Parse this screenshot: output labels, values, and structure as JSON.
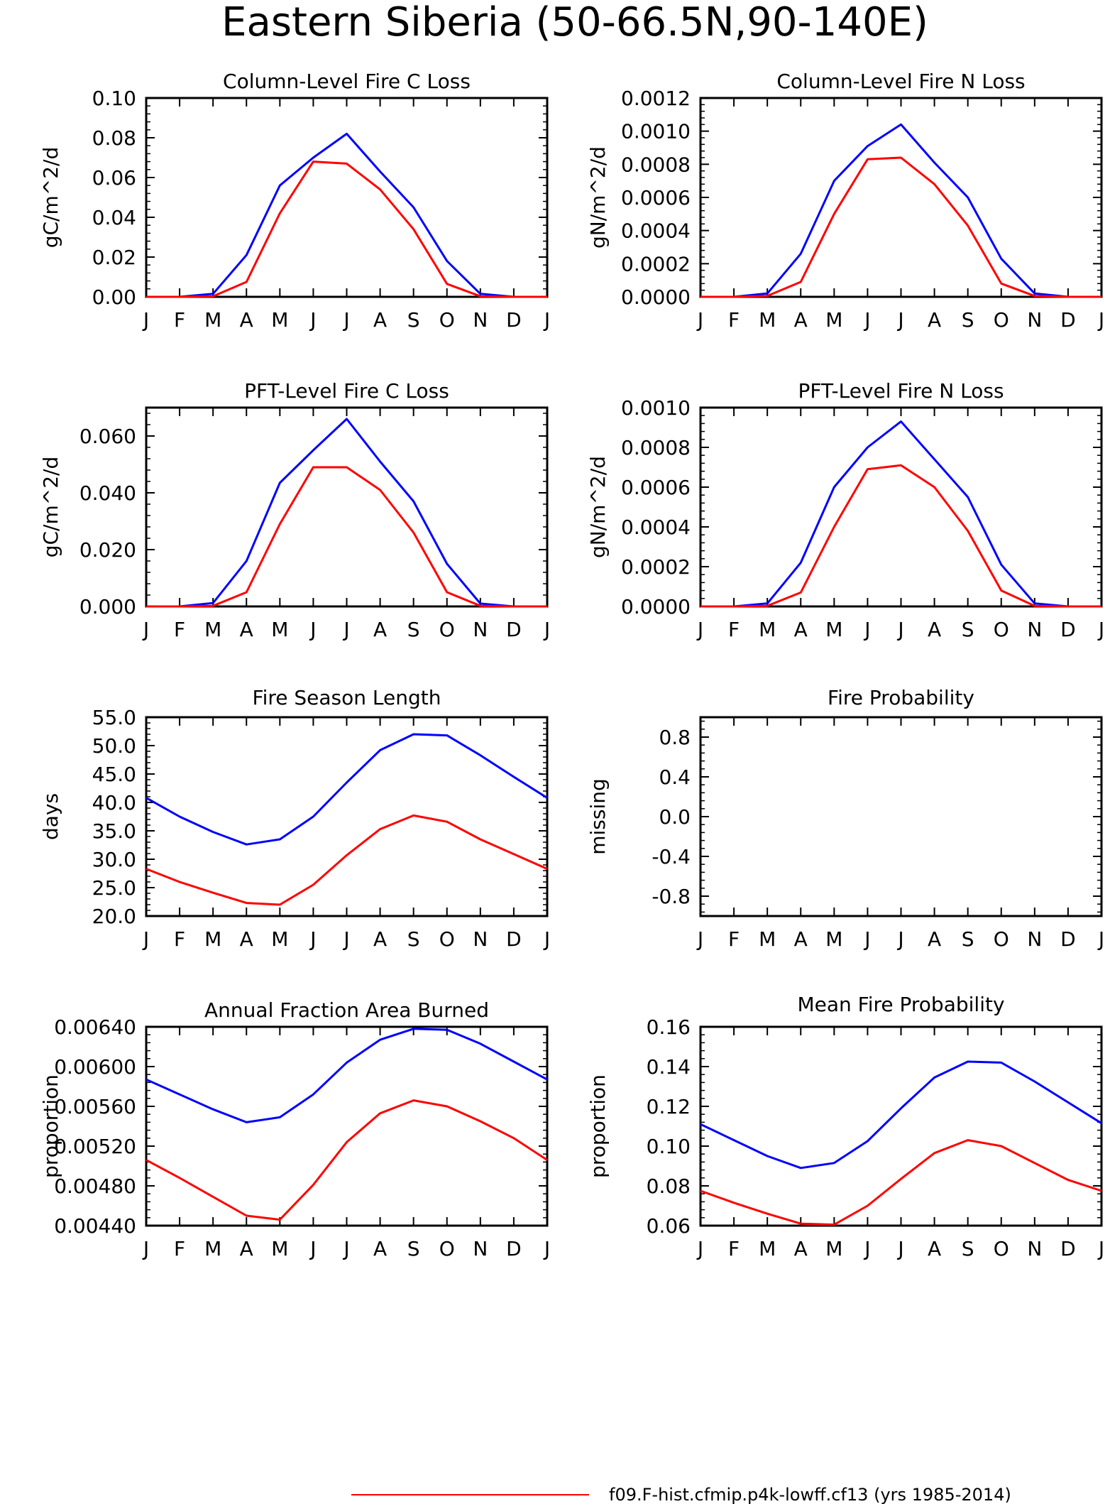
{
  "title": "Eastern Siberia (50-66.5N,90-140E)",
  "month_labels": [
    "J",
    "F",
    "M",
    "A",
    "M",
    "J",
    "J",
    "A",
    "S",
    "O",
    "N",
    "D",
    "J"
  ],
  "colors": {
    "case1": "#0000ff",
    "case2": "#ff0000"
  },
  "legend": {
    "case2_label": "f09.F-hist.cfmip.p4k-lowff.cf13 (yrs 1985-2014)"
  },
  "chart_data": [
    {
      "type": "line",
      "title": "Column-Level Fire C Loss",
      "ylabel": "gC/m^2/d",
      "ylim": [
        0,
        0.1
      ],
      "yticks": [
        "0.00",
        "0.02",
        "0.04",
        "0.06",
        "0.08",
        "0.10"
      ],
      "ytick_values": [
        0,
        0.02,
        0.04,
        0.06,
        0.08,
        0.1
      ],
      "x": [
        "J",
        "F",
        "M",
        "A",
        "M",
        "J",
        "J",
        "A",
        "S",
        "O",
        "N",
        "D",
        "J"
      ],
      "series": [
        {
          "color": "#0000ff",
          "values": [
            0.0,
            0.0,
            0.0015,
            0.021,
            0.056,
            0.07,
            0.082,
            0.063,
            0.045,
            0.018,
            0.0015,
            0.0,
            0.0
          ]
        },
        {
          "color": "#ff0000",
          "values": [
            0.0,
            0.0,
            0.0003,
            0.0075,
            0.042,
            0.068,
            0.067,
            0.054,
            0.034,
            0.0065,
            0.0003,
            0.0,
            0.0
          ]
        }
      ]
    },
    {
      "type": "line",
      "title": "Column-Level Fire N Loss",
      "ylabel": "gN/m^2/d",
      "ylim": [
        0,
        0.0012
      ],
      "yticks": [
        "0.0000",
        "0.0002",
        "0.0004",
        "0.0006",
        "0.0008",
        "0.0010",
        "0.0012"
      ],
      "ytick_values": [
        0,
        0.0002,
        0.0004,
        0.0006,
        0.0008,
        0.001,
        0.0012
      ],
      "x": [
        "J",
        "F",
        "M",
        "A",
        "M",
        "J",
        "J",
        "A",
        "S",
        "O",
        "N",
        "D",
        "J"
      ],
      "series": [
        {
          "color": "#0000ff",
          "values": [
            0.0,
            0.0,
            2e-05,
            0.00026,
            0.0007,
            0.00091,
            0.00104,
            0.00081,
            0.0006,
            0.00023,
            2e-05,
            0.0,
            0.0
          ]
        },
        {
          "color": "#ff0000",
          "values": [
            0.0,
            0.0,
            5e-06,
            9e-05,
            0.0005,
            0.00083,
            0.00084,
            0.00068,
            0.00043,
            8e-05,
            5e-06,
            0.0,
            0.0
          ]
        }
      ]
    },
    {
      "type": "line",
      "title": "PFT-Level Fire C Loss",
      "ylabel": "gC/m^2/d",
      "ylim": [
        0,
        0.07
      ],
      "yticks": [
        "0.000",
        "0.020",
        "0.040",
        "0.060"
      ],
      "ytick_values": [
        0,
        0.02,
        0.04,
        0.06
      ],
      "x": [
        "J",
        "F",
        "M",
        "A",
        "M",
        "J",
        "J",
        "A",
        "S",
        "O",
        "N",
        "D",
        "J"
      ],
      "series": [
        {
          "color": "#0000ff",
          "values": [
            0.0,
            0.0,
            0.0012,
            0.016,
            0.0435,
            0.055,
            0.066,
            0.051,
            0.037,
            0.015,
            0.001,
            0.0,
            0.0
          ]
        },
        {
          "color": "#ff0000",
          "values": [
            0.0,
            0.0,
            0.0002,
            0.005,
            0.029,
            0.049,
            0.049,
            0.041,
            0.026,
            0.005,
            0.0002,
            0.0,
            0.0
          ]
        }
      ]
    },
    {
      "type": "line",
      "title": "PFT-Level Fire N Loss",
      "ylabel": "gN/m^2/d",
      "ylim": [
        0,
        0.001
      ],
      "yticks": [
        "0.0000",
        "0.0002",
        "0.0004",
        "0.0006",
        "0.0008",
        "0.0010"
      ],
      "ytick_values": [
        0,
        0.0002,
        0.0004,
        0.0006,
        0.0008,
        0.001
      ],
      "x": [
        "J",
        "F",
        "M",
        "A",
        "M",
        "J",
        "J",
        "A",
        "S",
        "O",
        "N",
        "D",
        "J"
      ],
      "series": [
        {
          "color": "#0000ff",
          "values": [
            0.0,
            0.0,
            1.5e-05,
            0.00022,
            0.0006,
            0.0008,
            0.00093,
            0.00074,
            0.00055,
            0.00021,
            1.5e-05,
            0.0,
            0.0
          ]
        },
        {
          "color": "#ff0000",
          "values": [
            0.0,
            0.0,
            3e-06,
            7e-05,
            0.0004,
            0.00069,
            0.00071,
            0.0006,
            0.00038,
            8e-05,
            3e-06,
            0.0,
            0.0
          ]
        }
      ]
    },
    {
      "type": "line",
      "title": "Fire Season Length",
      "ylabel": "days",
      "ylim": [
        20,
        55
      ],
      "yticks": [
        "20.0",
        "25.0",
        "30.0",
        "35.0",
        "40.0",
        "45.0",
        "50.0",
        "55.0"
      ],
      "ytick_values": [
        20,
        25,
        30,
        35,
        40,
        45,
        50,
        55
      ],
      "x": [
        "J",
        "F",
        "M",
        "A",
        "M",
        "J",
        "J",
        "A",
        "S",
        "O",
        "N",
        "D",
        "J"
      ],
      "series": [
        {
          "color": "#0000ff",
          "values": [
            40.8,
            37.5,
            34.8,
            32.6,
            33.5,
            37.5,
            43.5,
            49.2,
            52.0,
            51.8,
            48.3,
            44.5,
            40.8
          ]
        },
        {
          "color": "#ff0000",
          "values": [
            28.3,
            26.0,
            24.1,
            22.3,
            22.0,
            25.5,
            30.7,
            35.3,
            37.7,
            36.6,
            33.5,
            30.9,
            28.3
          ]
        }
      ]
    },
    {
      "type": "line",
      "title": "Fire Probability",
      "ylabel": "missing",
      "ylim": [
        -1,
        1
      ],
      "yticks": [
        "-0.8",
        "-0.4",
        "0.0",
        "0.4",
        "0.8"
      ],
      "ytick_values": [
        -0.8,
        -0.4,
        0.0,
        0.4,
        0.8
      ],
      "x": [
        "J",
        "F",
        "M",
        "A",
        "M",
        "J",
        "J",
        "A",
        "S",
        "O",
        "N",
        "D",
        "J"
      ],
      "series": []
    },
    {
      "type": "line",
      "title": "Annual Fraction Area Burned",
      "ylabel": "proportion",
      "ylim": [
        0.0044,
        0.0064
      ],
      "yticks": [
        "0.00440",
        "0.00480",
        "0.00520",
        "0.00560",
        "0.00600",
        "0.00640"
      ],
      "ytick_values": [
        0.0044,
        0.0048,
        0.0052,
        0.0056,
        0.006,
        0.0064
      ],
      "x": [
        "J",
        "F",
        "M",
        "A",
        "M",
        "J",
        "J",
        "A",
        "S",
        "O",
        "N",
        "D",
        "J"
      ],
      "series": [
        {
          "color": "#0000ff",
          "values": [
            0.00587,
            0.00572,
            0.00557,
            0.00544,
            0.00549,
            0.00572,
            0.00604,
            0.00627,
            0.00638,
            0.00637,
            0.00623,
            0.00605,
            0.00587
          ]
        },
        {
          "color": "#ff0000",
          "values": [
            0.00506,
            0.00488,
            0.00469,
            0.0045,
            0.00446,
            0.00481,
            0.00524,
            0.00553,
            0.00566,
            0.0056,
            0.00545,
            0.00528,
            0.00506
          ]
        }
      ]
    },
    {
      "type": "line",
      "title": "Mean Fire Probability",
      "ylabel": "proportion",
      "ylim": [
        0.06,
        0.16
      ],
      "yticks": [
        "0.06",
        "0.08",
        "0.10",
        "0.12",
        "0.14",
        "0.16"
      ],
      "ytick_values": [
        0.06,
        0.08,
        0.1,
        0.12,
        0.14,
        0.16
      ],
      "x": [
        "J",
        "F",
        "M",
        "A",
        "M",
        "J",
        "J",
        "A",
        "S",
        "O",
        "N",
        "D",
        "J"
      ],
      "series": [
        {
          "color": "#0000ff",
          "values": [
            0.111,
            0.103,
            0.095,
            0.089,
            0.0915,
            0.1025,
            0.119,
            0.1345,
            0.1425,
            0.142,
            0.1325,
            0.122,
            0.1115
          ]
        },
        {
          "color": "#ff0000",
          "values": [
            0.0775,
            0.0715,
            0.066,
            0.061,
            0.0605,
            0.07,
            0.0835,
            0.0965,
            0.103,
            0.1,
            0.0915,
            0.083,
            0.0775
          ]
        }
      ]
    }
  ]
}
